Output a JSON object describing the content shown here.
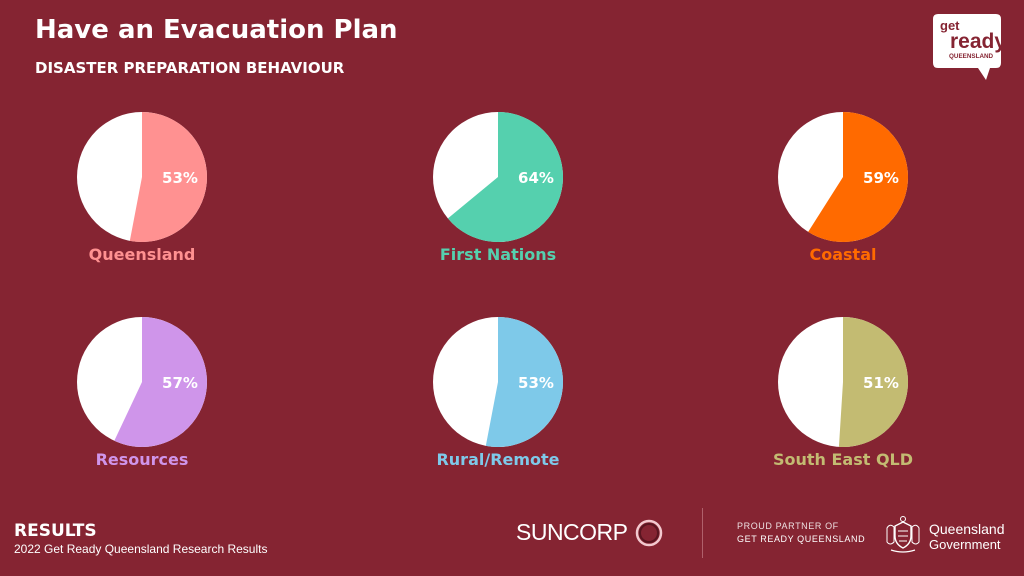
{
  "header": {
    "title": "Have an Evacuation Plan",
    "subtitle": "DISASTER PREPARATION BEHAVIOUR"
  },
  "logo": {
    "line1": "get",
    "line2": "ready",
    "line3": "QUEENSLAND"
  },
  "chart_data": {
    "type": "pie",
    "title": "Have an Evacuation Plan",
    "charts": [
      {
        "label": "Queensland",
        "value": 53,
        "display": "53%",
        "color": "#FF9191"
      },
      {
        "label": "First Nations",
        "value": 64,
        "display": "64%",
        "color": "#55D0AE"
      },
      {
        "label": "Coastal",
        "value": 59,
        "display": "59%",
        "color": "#FF6A00"
      },
      {
        "label": "Resources",
        "value": 57,
        "display": "57%",
        "color": "#CF95EA"
      },
      {
        "label": "Rural/Remote",
        "value": 53,
        "display": "53%",
        "color": "#7EC9E9"
      },
      {
        "label": "South East QLD",
        "value": 51,
        "display": "51%",
        "color": "#C3BB72"
      }
    ],
    "remainder_color": "#FFFFFF"
  },
  "footer": {
    "results": "RESULTS",
    "note": "2022 Get Ready Queensland Research Results",
    "suncorp": "SUNCORP",
    "partner_line1": "PROUD PARTNER OF",
    "partner_line2": "GET READY QUEENSLAND",
    "qgov_line1": "Queensland",
    "qgov_line2": "Government"
  }
}
